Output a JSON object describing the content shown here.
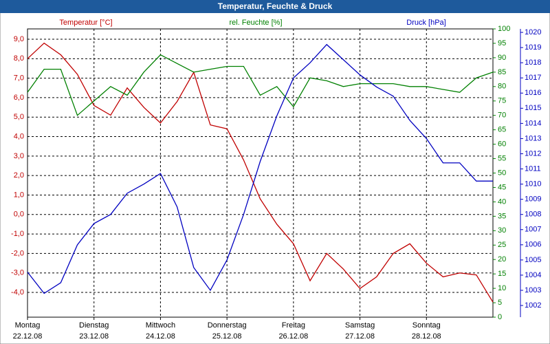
{
  "chart_data": {
    "type": "line",
    "title": "Temperatur, Feuchte & Druck",
    "x": [
      0,
      0.25,
      0.5,
      0.75,
      1,
      1.25,
      1.5,
      1.75,
      2,
      2.25,
      2.5,
      2.75,
      3,
      3.25,
      3.5,
      3.75,
      4,
      4.25,
      4.5,
      4.75,
      5,
      5.25,
      5.5,
      5.75,
      6,
      6.25,
      6.5,
      6.75,
      7
    ],
    "xlim": [
      0,
      7
    ],
    "xticks": [
      {
        "value": 0,
        "label": "Montag",
        "date": "22.12.08"
      },
      {
        "value": 1,
        "label": "Dienstag",
        "date": "23.12.08"
      },
      {
        "value": 2,
        "label": "Mittwoch",
        "date": "24.12.08"
      },
      {
        "value": 3,
        "label": "Donnerstag",
        "date": "25.12.08"
      },
      {
        "value": 4,
        "label": "Freitag",
        "date": "26.12.08"
      },
      {
        "value": 5,
        "label": "Samstag",
        "date": "27.12.08"
      },
      {
        "value": 6,
        "label": "Sonntag",
        "date": "28.12.08"
      }
    ],
    "ylabel": "Temperatur [°C]",
    "ylim": [
      -5.27,
      9.53
    ],
    "yticks": [
      {
        "value": 9,
        "label": "9,0"
      },
      {
        "value": 8,
        "label": "8,0"
      },
      {
        "value": 7,
        "label": "7,0"
      },
      {
        "value": 6,
        "label": "6,0"
      },
      {
        "value": 5,
        "label": "5,0"
      },
      {
        "value": 4,
        "label": "4,0"
      },
      {
        "value": 3,
        "label": "3,0"
      },
      {
        "value": 2,
        "label": "2,0"
      },
      {
        "value": 1,
        "label": "1,0"
      },
      {
        "value": 0,
        "label": "0,0"
      },
      {
        "value": -1,
        "label": "-1,0"
      },
      {
        "value": -2,
        "label": "-2,0"
      },
      {
        "value": -3,
        "label": "-3,0"
      },
      {
        "value": -4,
        "label": "-4,0"
      }
    ],
    "y2label": "rel. Feuchte [%]",
    "y2lim": [
      0,
      100
    ],
    "y2ticks": [
      0,
      5,
      10,
      15,
      20,
      25,
      30,
      35,
      40,
      45,
      50,
      55,
      60,
      65,
      70,
      75,
      80,
      85,
      90,
      95,
      100
    ],
    "y3label": "Druck [hPa]",
    "y3lim": [
      1001.23,
      1020.23
    ],
    "y3ticks": [
      1002,
      1003,
      1004,
      1005,
      1006,
      1007,
      1008,
      1009,
      1010,
      1011,
      1012,
      1013,
      1014,
      1015,
      1016,
      1017,
      1018,
      1019,
      1020
    ],
    "grid": true,
    "series": [
      {
        "name": "Temperatur [°C]",
        "color": "#c00000",
        "axis": "y",
        "values": [
          8.0,
          8.8,
          8.2,
          7.2,
          5.6,
          5.1,
          6.5,
          5.5,
          4.7,
          5.8,
          7.3,
          4.6,
          4.4,
          2.8,
          0.8,
          -0.5,
          -1.5,
          -3.4,
          -2.0,
          -2.8,
          -3.8,
          -3.2,
          -2.0,
          -1.5,
          -2.5,
          -3.2,
          -3.0,
          -3.1,
          -4.5
        ]
      },
      {
        "name": "rel. Feuchte [%]",
        "color": "#008000",
        "axis": "y2",
        "values": [
          78,
          86,
          86,
          70,
          75,
          80,
          77,
          85,
          91,
          88,
          85,
          86,
          87,
          87,
          77,
          80,
          73,
          83,
          82,
          80,
          81,
          81,
          81,
          80,
          80,
          79,
          78,
          83,
          85
        ]
      },
      {
        "name": "Druck [hPa]",
        "color": "#0000c0",
        "axis": "y3",
        "values": [
          1004.2,
          1002.8,
          1003.5,
          1006.0,
          1007.4,
          1008.0,
          1009.4,
          1010.0,
          1010.7,
          1008.5,
          1004.5,
          1003.0,
          1005.0,
          1008.0,
          1011.5,
          1014.5,
          1017.0,
          1018.0,
          1019.2,
          1018.2,
          1017.2,
          1016.4,
          1015.8,
          1014.2,
          1013.0,
          1011.4,
          1011.4,
          1010.2,
          1010.2
        ]
      }
    ]
  }
}
